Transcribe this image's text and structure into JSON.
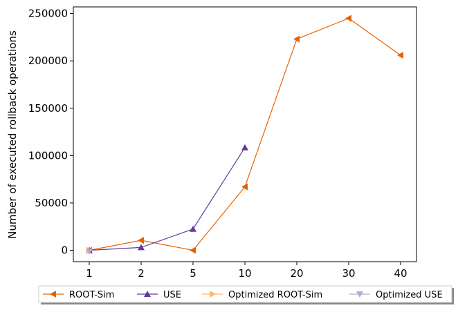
{
  "chart_data": {
    "type": "line",
    "title": "",
    "xlabel": "",
    "ylabel": "Number of executed rollback operations",
    "categories": [
      "1",
      "2",
      "5",
      "10",
      "20",
      "30",
      "40"
    ],
    "ylim": [
      -12000,
      257000
    ],
    "yticks": [
      0,
      50000,
      100000,
      150000,
      200000,
      250000
    ],
    "grid": false,
    "legend_placement": "bottom",
    "series": [
      {
        "name": "ROOT-Sim",
        "color": "#e66101",
        "marker": "triangle-left",
        "values": [
          0,
          10500,
          0,
          67000,
          223000,
          245000,
          206000
        ]
      },
      {
        "name": "USE",
        "color": "#5e3c99",
        "marker": "triangle-up",
        "values": [
          0,
          3000,
          22500,
          108500,
          null,
          null,
          null
        ]
      },
      {
        "name": "Optimized ROOT-Sim",
        "color": "#fdb863",
        "marker": "triangle-right",
        "values": [
          0,
          null,
          null,
          null,
          null,
          null,
          null
        ]
      },
      {
        "name": "Optimized USE",
        "color": "#b2abd2",
        "marker": "triangle-down",
        "values": [
          -1000,
          null,
          null,
          null,
          null,
          null,
          null
        ]
      }
    ]
  }
}
